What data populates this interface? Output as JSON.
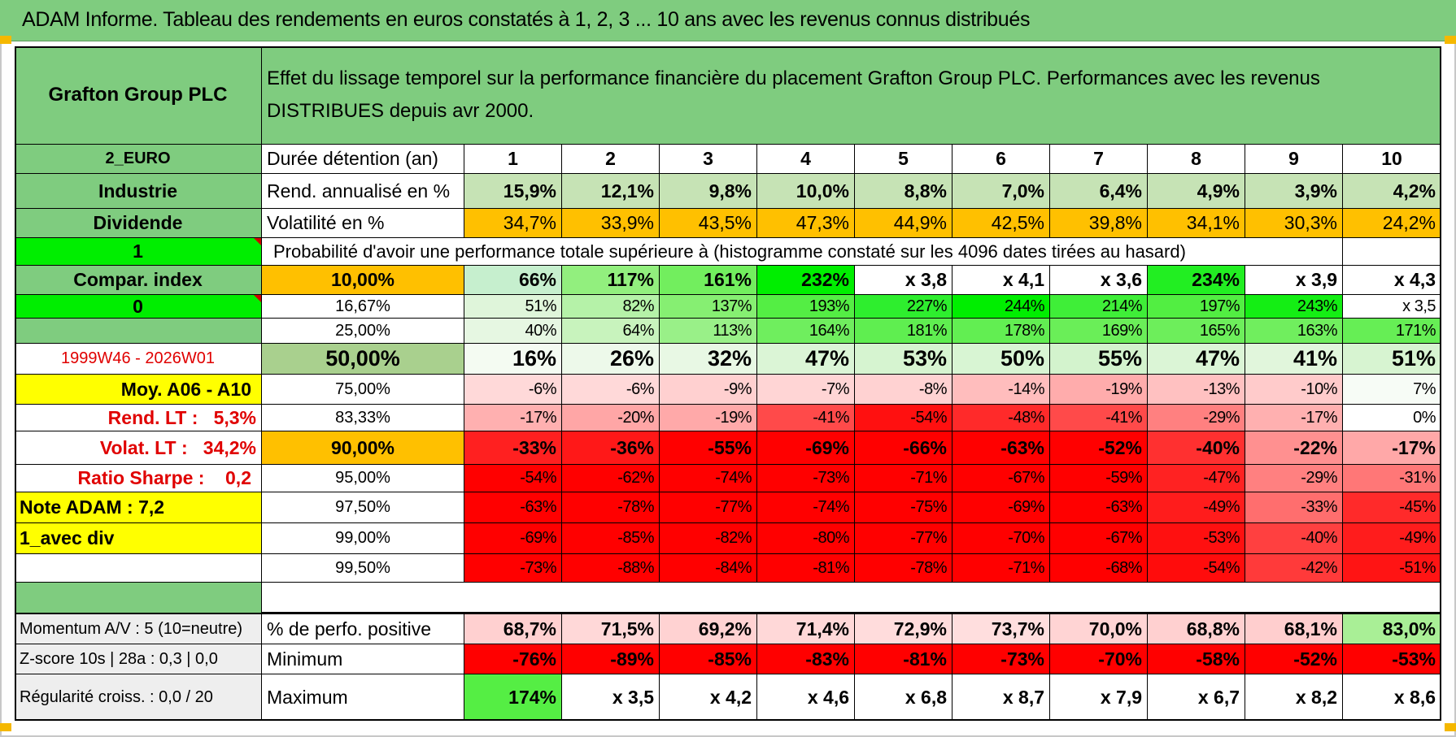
{
  "title": "ADAM Informe. Tableau des rendements en euros constatés à 1, 2, 3 ... 10 ans avec les revenus connus distribués",
  "colors": {
    "header_green": "#7fcc7f",
    "bright_green": "#00ee00",
    "orange": "#ffc000",
    "yellow": "#ffff00",
    "red_text": "#e00000",
    "light_green_rend": "#c6e3b5",
    "median_label_bg": "#a9d08e"
  },
  "company": "Grafton Group PLC",
  "description": "Effet du lissage temporel sur la performance financière du placement Grafton Group PLC. Performances avec les revenus DISTRIBUES depuis avr 2000.",
  "side": {
    "currency": "2_EURO",
    "sector": "Industrie",
    "dividend": "Dividende",
    "one": "1",
    "compar_index": "Compar. index",
    "zero": "0",
    "period": "1999W46 - 2026W01",
    "moy": "Moy. A06 - A10",
    "rend_lt": "Rend. LT :   5,3%",
    "volat_lt": "Volat. LT :   34,2%",
    "sharpe": "Ratio Sharpe :    0,2",
    "note": "Note ADAM : 7,2",
    "avec_div": "1_avec div"
  },
  "labels": {
    "duration": "Durée détention (an)",
    "rend": "Rend. annualisé en %",
    "vol": "Volatilité en %",
    "prob": "Probabilité d'avoir une performance totale supérieure à (histogramme constaté sur les 4096 dates tirées au hasard)"
  },
  "years": [
    "1",
    "2",
    "3",
    "4",
    "5",
    "6",
    "7",
    "8",
    "9",
    "10"
  ],
  "rend": [
    "15,9%",
    "12,1%",
    "9,8%",
    "10,0%",
    "8,8%",
    "7,0%",
    "6,4%",
    "4,9%",
    "3,9%",
    "4,2%"
  ],
  "vol": [
    "34,7%",
    "33,9%",
    "43,5%",
    "47,3%",
    "44,9%",
    "42,5%",
    "39,8%",
    "34,1%",
    "30,3%",
    "24,2%"
  ],
  "prob_rows": [
    {
      "pct": "10,00%",
      "values": [
        "66%",
        "117%",
        "161%",
        "232%",
        "x 3,8",
        "x 4,1",
        "x 3,6",
        "234%",
        "x 3,9",
        "x 4,3"
      ],
      "colors": [
        "#c6efce",
        "#92ef7e",
        "#72ee5e",
        "#00ee00",
        "#ffffff",
        "#ffffff",
        "#ffffff",
        "#22ee22",
        "#ffffff",
        "#ffffff"
      ]
    },
    {
      "pct": "16,67%",
      "values": [
        "51%",
        "82%",
        "137%",
        "193%",
        "227%",
        "244%",
        "214%",
        "197%",
        "243%",
        "x 3,5"
      ],
      "colors": [
        "#dff5da",
        "#b5f2a8",
        "#86ef72",
        "#54ee44",
        "#2eee2e",
        "#00ee00",
        "#3fee38",
        "#52ee42",
        "#14ee14",
        "#ffffff"
      ]
    },
    {
      "pct": "25,00%",
      "values": [
        "40%",
        "64%",
        "113%",
        "164%",
        "181%",
        "178%",
        "169%",
        "165%",
        "163%",
        "171%"
      ],
      "colors": [
        "#e6f7e2",
        "#c8f3bd",
        "#99f088",
        "#6fee5e",
        "#5fee50",
        "#62ee52",
        "#6aee58",
        "#6dee5b",
        "#70ee5e",
        "#66ee55"
      ]
    },
    {
      "pct": "50,00%",
      "values": [
        "16%",
        "26%",
        "32%",
        "47%",
        "53%",
        "50%",
        "55%",
        "47%",
        "41%",
        "51%"
      ],
      "colors": [
        "#f4fbf2",
        "#edf9ea",
        "#e8f8e4",
        "#dbf5d6",
        "#d6f4d0",
        "#d8f5d3",
        "#d3f3cd",
        "#dbf5d6",
        "#e1f6dc",
        "#d7f4d1"
      ]
    },
    {
      "pct": "75,00%",
      "values": [
        "-6%",
        "-6%",
        "-9%",
        "-7%",
        "-8%",
        "-14%",
        "-19%",
        "-13%",
        "-10%",
        "7%"
      ],
      "colors": [
        "#ffd9d9",
        "#ffd9d9",
        "#ffd0d0",
        "#ffd5d5",
        "#ffd2d2",
        "#ffbdbd",
        "#ffacac",
        "#ffc1c1",
        "#ffcbcb",
        "#f7fcf6"
      ]
    },
    {
      "pct": "83,33%",
      "values": [
        "-17%",
        "-20%",
        "-19%",
        "-41%",
        "-54%",
        "-48%",
        "-41%",
        "-29%",
        "-17%",
        "0%"
      ],
      "colors": [
        "#ffb0b0",
        "#ffa6a6",
        "#ffa9a9",
        "#ff4a4a",
        "#ff1010",
        "#ff2a2a",
        "#ff4a4a",
        "#ff8080",
        "#ffb0b0",
        "#ffffff"
      ]
    },
    {
      "pct": "90,00%",
      "values": [
        "-33%",
        "-36%",
        "-55%",
        "-69%",
        "-66%",
        "-63%",
        "-52%",
        "-40%",
        "-22%",
        "-17%"
      ],
      "colors": [
        "#ff2020",
        "#ff1818",
        "#ff0000",
        "#ff0000",
        "#ff0000",
        "#ff0000",
        "#ff0000",
        "#ff3030",
        "#ff9090",
        "#ffa8a8"
      ]
    },
    {
      "pct": "95,00%",
      "values": [
        "-54%",
        "-62%",
        "-74%",
        "-73%",
        "-71%",
        "-67%",
        "-59%",
        "-47%",
        "-29%",
        "-31%"
      ],
      "colors": [
        "#ff0000",
        "#ff0000",
        "#ff0000",
        "#ff0000",
        "#ff0000",
        "#ff0000",
        "#ff0000",
        "#ff2222",
        "#ff8080",
        "#ff7777"
      ]
    },
    {
      "pct": "97,50%",
      "values": [
        "-63%",
        "-78%",
        "-77%",
        "-74%",
        "-75%",
        "-69%",
        "-63%",
        "-49%",
        "-33%",
        "-45%"
      ],
      "colors": [
        "#ff0000",
        "#ff0000",
        "#ff0000",
        "#ff0000",
        "#ff0000",
        "#ff0000",
        "#ff0000",
        "#ff1c1c",
        "#ff6e6e",
        "#ff2a2a"
      ]
    },
    {
      "pct": "99,00%",
      "values": [
        "-69%",
        "-85%",
        "-82%",
        "-80%",
        "-77%",
        "-70%",
        "-67%",
        "-53%",
        "-40%",
        "-49%"
      ],
      "colors": [
        "#ff0000",
        "#ff0000",
        "#ff0000",
        "#ff0000",
        "#ff0000",
        "#ff0000",
        "#ff0000",
        "#ff1010",
        "#ff4040",
        "#ff1c1c"
      ]
    },
    {
      "pct": "99,50%",
      "values": [
        "-73%",
        "-88%",
        "-84%",
        "-81%",
        "-78%",
        "-71%",
        "-68%",
        "-54%",
        "-42%",
        "-51%"
      ],
      "colors": [
        "#ff0000",
        "#ff0000",
        "#ff0000",
        "#ff0000",
        "#ff0000",
        "#ff0000",
        "#ff0000",
        "#ff0c0c",
        "#ff3a3a",
        "#ff1414"
      ]
    }
  ],
  "bottom": {
    "momentum": "Momentum A/V : 5 (10=neutre)",
    "zscore": "Z-score 10s | 28a : 0,3 | 0,0",
    "regularite": "Régularité croiss. : 0,0 / 20",
    "pos_label": "% de perfo. positive",
    "min_label": "Minimum",
    "max_label": "Maximum",
    "pos": [
      "68,7%",
      "71,5%",
      "69,2%",
      "71,4%",
      "72,9%",
      "73,7%",
      "70,0%",
      "68,8%",
      "68,1%",
      "83,0%"
    ],
    "pos_colors": [
      "#ffd0d0",
      "#ffd8d8",
      "#ffd2d2",
      "#ffd8d8",
      "#ffdcdc",
      "#ffdede",
      "#ffd4d4",
      "#ffd0d0",
      "#ffcece",
      "#a9ef96"
    ],
    "min": [
      "-76%",
      "-89%",
      "-85%",
      "-83%",
      "-81%",
      "-73%",
      "-70%",
      "-58%",
      "-52%",
      "-53%"
    ],
    "max": [
      "174%",
      "x 3,5",
      "x 4,2",
      "x 4,6",
      "x 6,8",
      "x 8,7",
      "x 7,9",
      "x 6,7",
      "x 8,2",
      "x 8,6"
    ],
    "max_colors": [
      "#55ee44",
      "#ffffff",
      "#ffffff",
      "#ffffff",
      "#ffffff",
      "#ffffff",
      "#ffffff",
      "#ffffff",
      "#ffffff",
      "#ffffff"
    ]
  }
}
